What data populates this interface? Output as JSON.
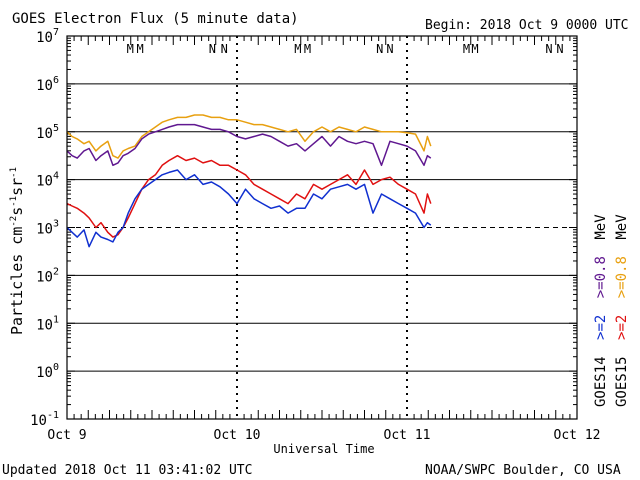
{
  "header": {
    "title": "GOES Electron Flux (5 minute data)",
    "begin": "Begin: 2018 Oct 9 0000 UTC"
  },
  "footer": {
    "updated": "Updated 2018 Oct 11 03:41:02 UTC",
    "credit": "NOAA/SWPC Boulder, CO USA"
  },
  "axes": {
    "ylabel_main": "Particles cm",
    "ylabel_sup1": "-2",
    "ylabel_mid1": "s",
    "ylabel_sup2": "-1",
    "ylabel_mid2": "sr",
    "ylabel_sup3": "-1",
    "xlabel": "Universal Time"
  },
  "legend": {
    "sat14": "GOES14",
    "sat15": "GOES15",
    "e2_14": ">=2",
    "e2_15": ">=2",
    "e08_14": ">=0.8",
    "e08_15": ">=0.8",
    "unit1": "MeV",
    "unit2": "MeV"
  },
  "colors": {
    "g14_e2": "#1030d0",
    "g15_e2": "#e01010",
    "g14_e08": "#601890",
    "g15_e08": "#e8a010",
    "mag_m_first": "#1a3cc8",
    "mag_m_second": "#e01010",
    "mag_n_first": "#1a3cc8",
    "mag_n_second": "#e01010"
  },
  "chart_data": {
    "type": "line",
    "xlim": [
      0,
      3
    ],
    "x_unit": "days since 2018 Oct 9 0000 UTC",
    "ylim_log10": [
      -1,
      7
    ],
    "y_scale": "log",
    "xticks": [
      {
        "value": 0,
        "label": "Oct 9"
      },
      {
        "value": 1,
        "label": "Oct 10"
      },
      {
        "value": 2,
        "label": "Oct 11"
      },
      {
        "value": 3,
        "label": "Oct 12"
      }
    ],
    "yticks": [
      {
        "exp": -1,
        "base": "10",
        "sup": "-1"
      },
      {
        "exp": 0,
        "base": "10",
        "sup": "0"
      },
      {
        "exp": 1,
        "base": "10",
        "sup": "1"
      },
      {
        "exp": 2,
        "base": "10",
        "sup": "2"
      },
      {
        "exp": 3,
        "base": "10",
        "sup": "3"
      },
      {
        "exp": 4,
        "base": "10",
        "sup": "4"
      },
      {
        "exp": 5,
        "base": "10",
        "sup": "5"
      },
      {
        "exp": 6,
        "base": "10",
        "sup": "6"
      },
      {
        "exp": 7,
        "base": "10",
        "sup": "7"
      }
    ],
    "gridlines_log10": [
      0,
      1,
      2,
      4,
      5,
      6
    ],
    "dashed_threshold_log10": 3,
    "day_dividers": [
      1,
      2
    ],
    "magnetopause_markers": [
      {
        "label": "M",
        "x": 0.372,
        "color": "#1a3cc8"
      },
      {
        "label": "M",
        "x": 0.43,
        "color": "#e01010"
      },
      {
        "label": "N",
        "x": 0.855,
        "color": "#1a3cc8"
      },
      {
        "label": "N",
        "x": 0.925,
        "color": "#e01010"
      },
      {
        "label": "M",
        "x": 1.358,
        "color": "#1a3cc8"
      },
      {
        "label": "M",
        "x": 1.415,
        "color": "#e01010"
      },
      {
        "label": "N",
        "x": 1.84,
        "color": "#1a3cc8"
      },
      {
        "label": "N",
        "x": 1.9,
        "color": "#e01010"
      },
      {
        "label": "M",
        "x": 2.35,
        "color": "#1a3cc8"
      },
      {
        "label": "M",
        "x": 2.4,
        "color": "#e01010"
      },
      {
        "label": "N",
        "x": 2.835,
        "color": "#1a3cc8"
      },
      {
        "label": "N",
        "x": 2.9,
        "color": "#e01010"
      }
    ],
    "series": [
      {
        "name": "GOES15 >=0.8 MeV",
        "color": "#e8a010",
        "x": [
          0.0,
          0.03,
          0.06,
          0.1,
          0.13,
          0.17,
          0.2,
          0.24,
          0.27,
          0.3,
          0.33,
          0.36,
          0.4,
          0.44,
          0.48,
          0.52,
          0.56,
          0.6,
          0.65,
          0.7,
          0.75,
          0.8,
          0.85,
          0.9,
          0.95,
          1.0,
          1.05,
          1.1,
          1.15,
          1.2,
          1.25,
          1.3,
          1.35,
          1.4,
          1.45,
          1.5,
          1.55,
          1.6,
          1.65,
          1.7,
          1.75,
          1.8,
          1.85,
          1.9,
          1.95,
          2.0,
          2.05,
          2.1,
          2.12,
          2.14
        ],
        "y": [
          5.0,
          4.9,
          4.85,
          4.75,
          4.8,
          4.6,
          4.7,
          4.8,
          4.5,
          4.45,
          4.6,
          4.65,
          4.7,
          4.9,
          5.0,
          5.1,
          5.2,
          5.25,
          5.3,
          5.3,
          5.35,
          5.35,
          5.3,
          5.3,
          5.25,
          5.25,
          5.2,
          5.15,
          5.15,
          5.1,
          5.05,
          5.0,
          5.05,
          4.8,
          5.0,
          5.1,
          5.0,
          5.1,
          5.05,
          5.0,
          5.1,
          5.05,
          5.0,
          5.0,
          5.0,
          4.98,
          4.95,
          4.6,
          4.9,
          4.7
        ]
      },
      {
        "name": "GOES14 >=0.8 MeV",
        "color": "#601890",
        "x": [
          0.0,
          0.03,
          0.06,
          0.1,
          0.13,
          0.17,
          0.2,
          0.24,
          0.27,
          0.3,
          0.33,
          0.36,
          0.4,
          0.44,
          0.48,
          0.52,
          0.56,
          0.6,
          0.65,
          0.7,
          0.75,
          0.8,
          0.85,
          0.9,
          0.95,
          1.0,
          1.05,
          1.1,
          1.15,
          1.2,
          1.25,
          1.3,
          1.35,
          1.4,
          1.45,
          1.5,
          1.55,
          1.6,
          1.65,
          1.7,
          1.75,
          1.8,
          1.85,
          1.9,
          1.95,
          2.0,
          2.05,
          2.1,
          2.12,
          2.14
        ],
        "y": [
          4.6,
          4.5,
          4.45,
          4.6,
          4.65,
          4.4,
          4.5,
          4.6,
          4.3,
          4.35,
          4.5,
          4.55,
          4.65,
          4.85,
          4.95,
          5.0,
          5.05,
          5.1,
          5.15,
          5.15,
          5.15,
          5.1,
          5.05,
          5.05,
          5.0,
          4.9,
          4.85,
          4.9,
          4.95,
          4.9,
          4.8,
          4.7,
          4.75,
          4.6,
          4.75,
          4.9,
          4.7,
          4.9,
          4.8,
          4.75,
          4.8,
          4.75,
          4.3,
          4.8,
          4.75,
          4.7,
          4.6,
          4.3,
          4.5,
          4.45
        ]
      },
      {
        "name": "GOES15 >=2 MeV",
        "color": "#e01010",
        "x": [
          0.0,
          0.03,
          0.06,
          0.1,
          0.13,
          0.17,
          0.2,
          0.24,
          0.27,
          0.3,
          0.33,
          0.36,
          0.4,
          0.44,
          0.48,
          0.52,
          0.56,
          0.6,
          0.65,
          0.7,
          0.75,
          0.8,
          0.85,
          0.9,
          0.95,
          1.0,
          1.05,
          1.1,
          1.15,
          1.2,
          1.25,
          1.3,
          1.35,
          1.4,
          1.45,
          1.5,
          1.55,
          1.6,
          1.65,
          1.7,
          1.75,
          1.8,
          1.85,
          1.9,
          1.95,
          2.0,
          2.05,
          2.1,
          2.12,
          2.14
        ],
        "y": [
          3.5,
          3.45,
          3.4,
          3.3,
          3.2,
          3.0,
          3.1,
          2.9,
          2.8,
          2.85,
          3.0,
          3.2,
          3.5,
          3.8,
          4.0,
          4.1,
          4.3,
          4.4,
          4.5,
          4.4,
          4.45,
          4.35,
          4.4,
          4.3,
          4.3,
          4.2,
          4.1,
          3.9,
          3.8,
          3.7,
          3.6,
          3.5,
          3.7,
          3.6,
          3.9,
          3.8,
          3.9,
          4.0,
          4.1,
          3.9,
          4.2,
          3.9,
          4.0,
          4.05,
          3.9,
          3.8,
          3.7,
          3.3,
          3.7,
          3.5
        ]
      },
      {
        "name": "GOES14 >=2 MeV",
        "color": "#1030d0",
        "x": [
          0.0,
          0.03,
          0.06,
          0.1,
          0.13,
          0.17,
          0.2,
          0.24,
          0.27,
          0.3,
          0.33,
          0.36,
          0.4,
          0.44,
          0.48,
          0.52,
          0.56,
          0.6,
          0.65,
          0.7,
          0.75,
          0.8,
          0.85,
          0.9,
          0.95,
          1.0,
          1.05,
          1.1,
          1.15,
          1.2,
          1.25,
          1.3,
          1.35,
          1.4,
          1.45,
          1.5,
          1.55,
          1.6,
          1.65,
          1.7,
          1.75,
          1.8,
          1.85,
          1.9,
          1.95,
          2.0,
          2.05,
          2.1,
          2.12,
          2.14
        ],
        "y": [
          3.0,
          2.9,
          2.8,
          2.95,
          2.6,
          2.9,
          2.8,
          2.75,
          2.7,
          2.9,
          3.0,
          3.3,
          3.6,
          3.8,
          3.9,
          4.0,
          4.1,
          4.15,
          4.2,
          4.0,
          4.1,
          3.9,
          3.95,
          3.85,
          3.7,
          3.5,
          3.8,
          3.6,
          3.5,
          3.4,
          3.45,
          3.3,
          3.4,
          3.4,
          3.7,
          3.6,
          3.8,
          3.85,
          3.9,
          3.8,
          3.9,
          3.3,
          3.7,
          3.6,
          3.5,
          3.4,
          3.3,
          3.0,
          3.1,
          3.05
        ]
      }
    ]
  }
}
